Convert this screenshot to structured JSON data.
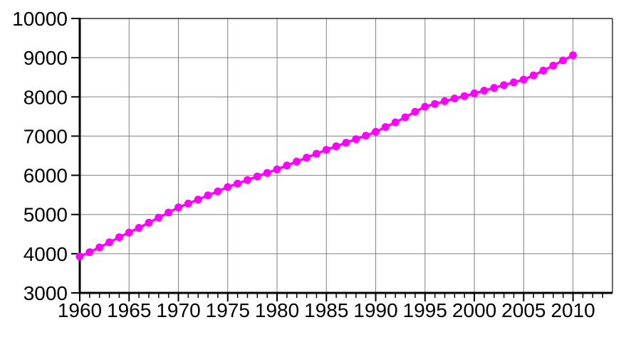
{
  "chart_data": {
    "type": "line",
    "title": "",
    "xlabel": "",
    "ylabel": "",
    "grid": true,
    "legend": "none",
    "marker": "circle",
    "xlim": [
      1960,
      2014
    ],
    "ylim": [
      3000,
      10000
    ],
    "x_ticks": [
      1960,
      1965,
      1970,
      1975,
      1980,
      1985,
      1990,
      1995,
      2000,
      2005,
      2010
    ],
    "x_minor_tick_step": 1,
    "x_minor_tick_end": 2013,
    "y_ticks": [
      3000,
      4000,
      5000,
      6000,
      7000,
      8000,
      9000,
      10000
    ],
    "x": [
      1960,
      1961,
      1962,
      1963,
      1964,
      1965,
      1966,
      1967,
      1968,
      1969,
      1970,
      1971,
      1972,
      1973,
      1974,
      1975,
      1976,
      1977,
      1978,
      1979,
      1980,
      1981,
      1982,
      1983,
      1984,
      1985,
      1986,
      1987,
      1988,
      1989,
      1990,
      1991,
      1992,
      1993,
      1994,
      1995,
      1996,
      1997,
      1998,
      1999,
      2000,
      2001,
      2002,
      2003,
      2004,
      2005,
      2006,
      2007,
      2008,
      2009,
      2010
    ],
    "values": [
      3930,
      4040,
      4160,
      4290,
      4420,
      4540,
      4660,
      4790,
      4920,
      5050,
      5180,
      5280,
      5380,
      5490,
      5590,
      5700,
      5790,
      5880,
      5970,
      6060,
      6150,
      6250,
      6350,
      6450,
      6550,
      6650,
      6740,
      6830,
      6920,
      7010,
      7110,
      7230,
      7350,
      7480,
      7620,
      7750,
      7820,
      7890,
      7960,
      8020,
      8090,
      8160,
      8230,
      8300,
      8370,
      8440,
      8550,
      8670,
      8800,
      8930,
      9060
    ]
  },
  "colors": {
    "marker": "#FF00FF",
    "line": "#FF00FF",
    "grid": "#808080",
    "axis": "#000000",
    "frame": "#000000",
    "background": "#FFFFFF",
    "tick_label": "#000000"
  }
}
